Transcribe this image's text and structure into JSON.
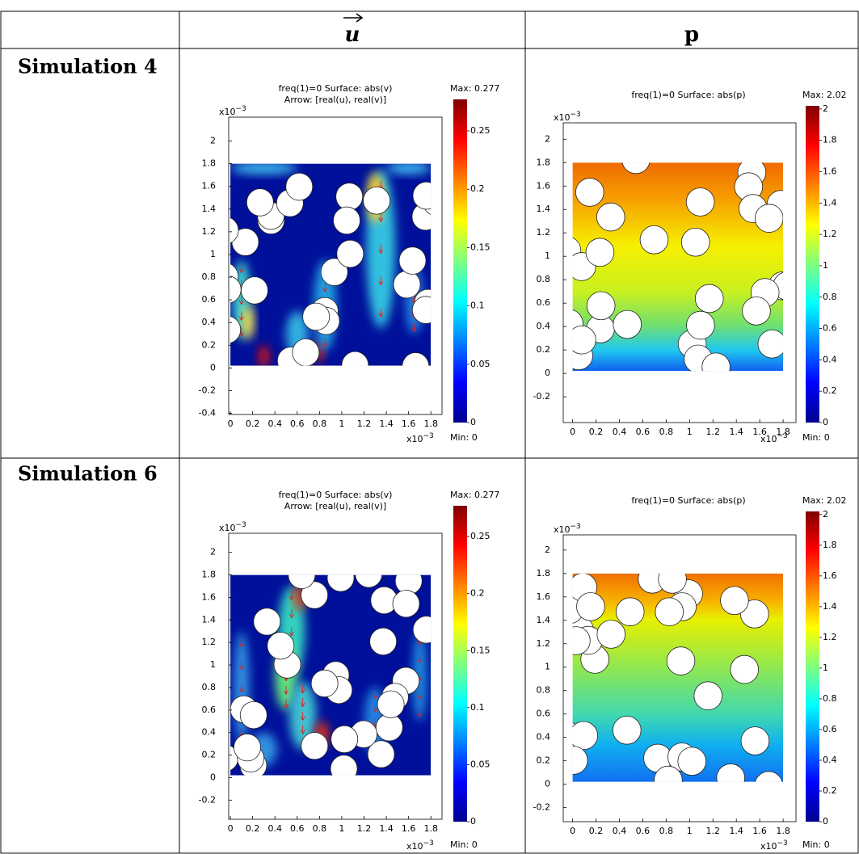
{
  "table": {
    "columns": [
      "u",
      "p"
    ],
    "rows": [
      {
        "label": "Simulation 4",
        "plots": [
          {
            "title_lines": [
              "freq(1)=0    Surface: abs(v)",
              "Arrow: [real(u), real(v)]"
            ],
            "xlim": [
              -0.015,
              1.9
            ],
            "ylim": [
              -0.41,
              2.21
            ],
            "xticks": [
              0,
              0.2,
              0.4,
              0.6,
              0.8,
              1,
              1.2,
              1.4,
              1.6,
              1.8
            ],
            "yticks": [
              -0.4,
              -0.2,
              0,
              0.2,
              0.4,
              0.6,
              0.8,
              1,
              1.2,
              1.4,
              1.6,
              1.8,
              2
            ],
            "x_scale": {
              "base": "x10",
              "exponent": "−3"
            },
            "y_scale": {
              "base": "x10",
              "exponent": "−3"
            },
            "colorbar": {
              "lim": [
                0,
                0.277
              ],
              "ticks": [
                0,
                0.05,
                0.1,
                0.15,
                0.2,
                0.25
              ],
              "max_label": "Max: 0.277",
              "min_label": "Min: 0"
            }
          },
          {
            "title_lines": [
              "freq(1)=0    Surface: abs(p)"
            ],
            "xlim": [
              -0.08,
              1.91
            ],
            "ylim": [
              -0.42,
              2.14
            ],
            "xticks": [
              0,
              0.2,
              0.4,
              0.6,
              0.8,
              1,
              1.2,
              1.4,
              1.6,
              1.8
            ],
            "yticks": [
              -0.2,
              0,
              0.2,
              0.4,
              0.6,
              0.8,
              1,
              1.2,
              1.4,
              1.6,
              1.8,
              2
            ],
            "x_scale": {
              "base": "x10",
              "exponent": "−3"
            },
            "y_scale": {
              "base": "x10",
              "exponent": "−3"
            },
            "colorbar": {
              "lim": [
                0,
                2.02
              ],
              "ticks": [
                0,
                0.2,
                0.4,
                0.6,
                0.8,
                1,
                1.2,
                1.4,
                1.6,
                1.8,
                2
              ],
              "max_label": "Max: 2.02",
              "min_label": "Min: 0"
            }
          }
        ]
      },
      {
        "label": "Simulation 6",
        "plots": [
          {
            "title_lines": [
              "freq(1)=0    Surface: abs(v)",
              "Arrow: [real(u), real(v)]"
            ],
            "xlim": [
              -0.015,
              1.9
            ],
            "ylim": [
              -0.37,
              2.17
            ],
            "xticks": [
              0,
              0.2,
              0.4,
              0.6,
              0.8,
              1,
              1.2,
              1.4,
              1.6,
              1.8
            ],
            "yticks": [
              -0.2,
              0,
              0.2,
              0.4,
              0.6,
              0.8,
              1,
              1.2,
              1.4,
              1.6,
              1.8,
              2
            ],
            "x_scale": {
              "base": "x10",
              "exponent": "−3"
            },
            "y_scale": {
              "base": "x10",
              "exponent": "−3"
            },
            "colorbar": {
              "lim": [
                0,
                0.277
              ],
              "ticks": [
                0,
                0.05,
                0.1,
                0.15,
                0.2,
                0.25
              ],
              "max_label": "Max: 0.277",
              "min_label": "Min: 0"
            }
          },
          {
            "title_lines": [
              "freq(1)=0    Surface: abs(p)"
            ],
            "xlim": [
              -0.08,
              1.91
            ],
            "ylim": [
              -0.32,
              2.13
            ],
            "xticks": [
              0,
              0.2,
              0.4,
              0.6,
              0.8,
              1,
              1.2,
              1.4,
              1.6,
              1.8
            ],
            "yticks": [
              -0.2,
              0,
              0.2,
              0.4,
              0.6,
              0.8,
              1,
              1.2,
              1.4,
              1.6,
              1.8,
              2
            ],
            "x_scale": {
              "base": "x10",
              "exponent": "−3"
            },
            "y_scale": {
              "base": "x10",
              "exponent": "−3"
            },
            "colorbar": {
              "lim": [
                0,
                2.02
              ],
              "ticks": [
                0,
                0.2,
                0.4,
                0.6,
                0.8,
                1,
                1.2,
                1.4,
                1.6,
                1.8,
                2
              ],
              "max_label": "Max: 2.02",
              "min_label": "Min: 0"
            }
          }
        ]
      }
    ]
  }
}
